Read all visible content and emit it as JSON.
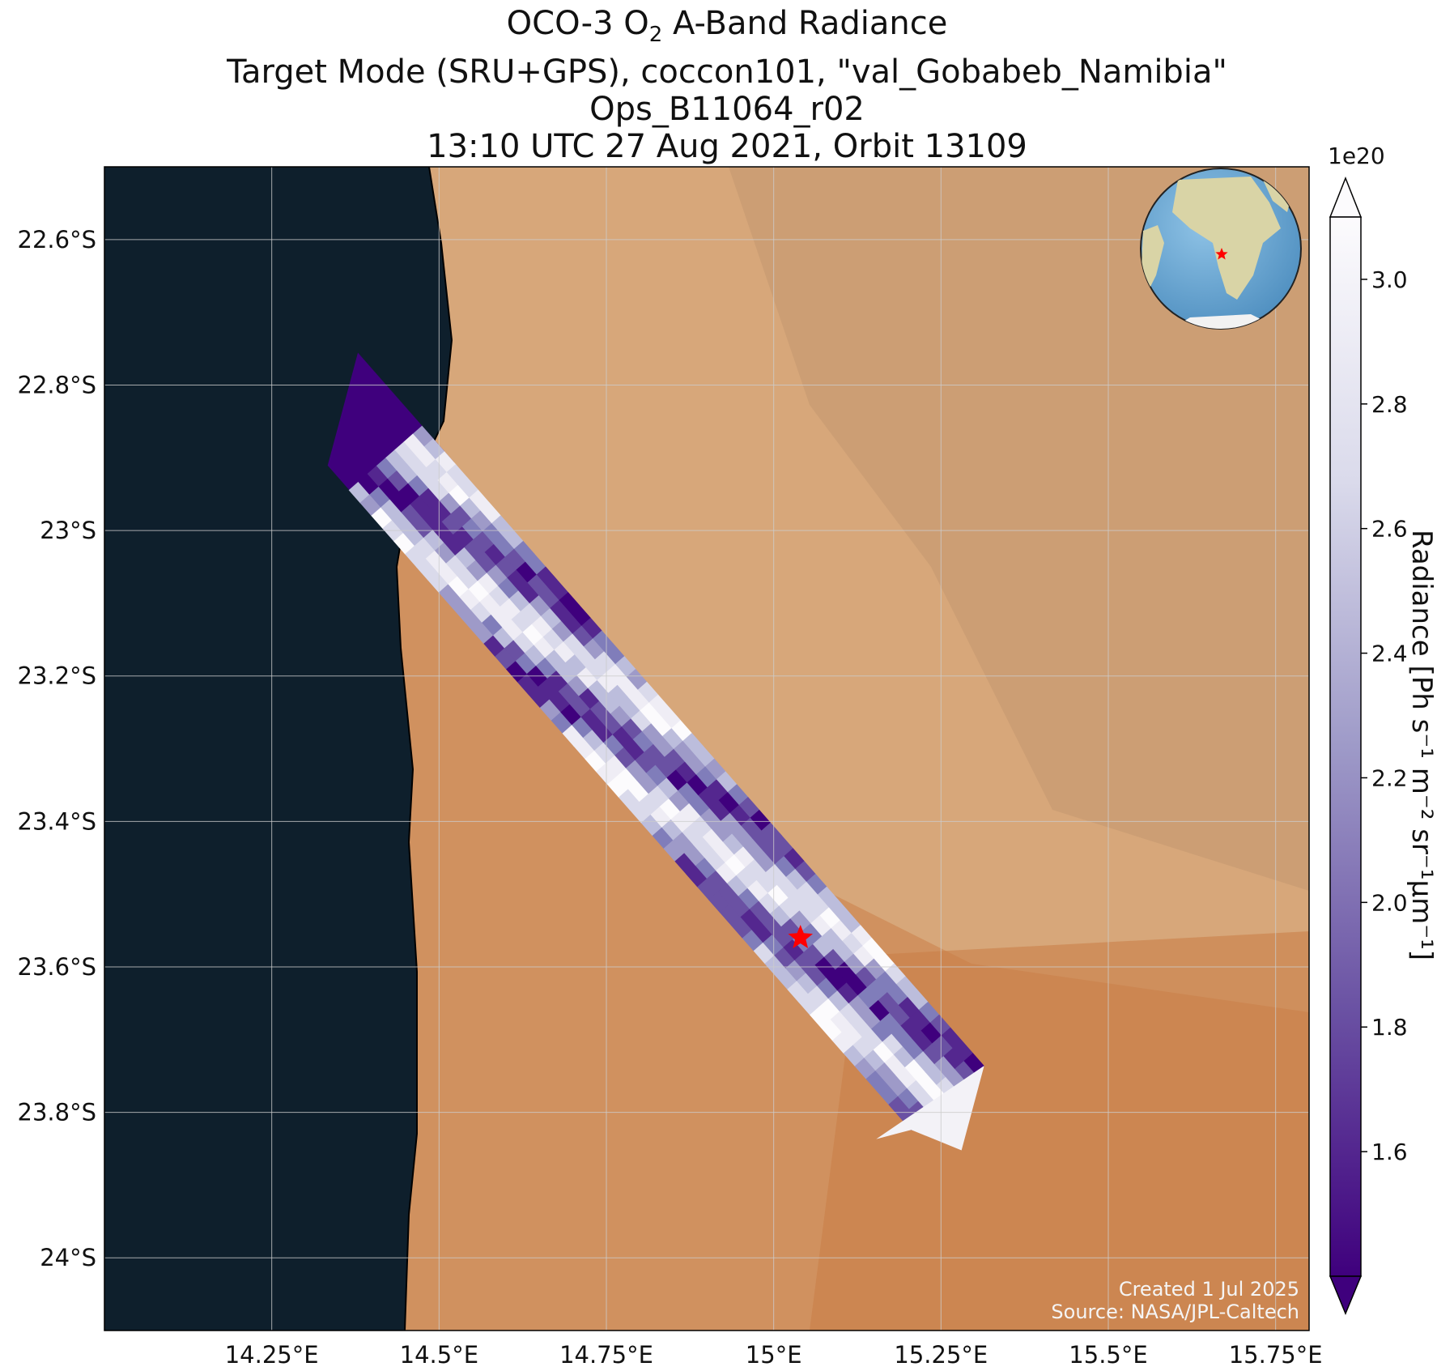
{
  "title": {
    "line1_prefix": "OCO-3 O",
    "line1_sub": "2",
    "line1_suffix": " A-Band Radiance",
    "line2": "Target Mode (SRU+GPS), coccon101, \"val_Gobabeb_Namibia\"",
    "line3": "Ops_B11064_r02",
    "line4": "13:10 UTC 27 Aug 2021, Orbit 13109"
  },
  "map": {
    "lon_range": [
      14.0,
      15.8
    ],
    "lat_range": [
      -24.1,
      -22.5
    ],
    "lon_ticks": [
      {
        "value": 14.25,
        "label": "14.25°E"
      },
      {
        "value": 14.5,
        "label": "14.5°E"
      },
      {
        "value": 14.75,
        "label": "14.75°E"
      },
      {
        "value": 15.0,
        "label": "15°E"
      },
      {
        "value": 15.25,
        "label": "15.25°E"
      },
      {
        "value": 15.5,
        "label": "15.5°E"
      },
      {
        "value": 15.75,
        "label": "15.75°E"
      }
    ],
    "lat_ticks": [
      {
        "value": -22.6,
        "label": "22.6°S"
      },
      {
        "value": -22.8,
        "label": "22.8°S"
      },
      {
        "value": -23.0,
        "label": "23°S"
      },
      {
        "value": -23.2,
        "label": "23.2°S"
      },
      {
        "value": -23.4,
        "label": "23.4°S"
      },
      {
        "value": -23.6,
        "label": "23.6°S"
      },
      {
        "value": -23.8,
        "label": "23.8°S"
      },
      {
        "value": -24.0,
        "label": "24°S"
      }
    ],
    "grid": true,
    "target": {
      "name": "val_Gobabeb_Namibia",
      "lon": 15.04,
      "lat": -23.56,
      "marker": "red-star"
    },
    "colors": {
      "ocean": "#0e1f2c",
      "land": "#d7a77a",
      "dunes": "#cf8d5a",
      "marker": "#ff0000"
    }
  },
  "colorbar": {
    "label": "Radiance [Ph s⁻¹ m⁻² sr⁻¹μm⁻¹]",
    "exponent": "1e20",
    "range": [
      1.4,
      3.1
    ],
    "ticks": [
      {
        "value": 1.6,
        "label": "1.6"
      },
      {
        "value": 1.8,
        "label": "1.8"
      },
      {
        "value": 2.0,
        "label": "2.0"
      },
      {
        "value": 2.2,
        "label": "2.2"
      },
      {
        "value": 2.4,
        "label": "2.4"
      },
      {
        "value": 2.6,
        "label": "2.6"
      },
      {
        "value": 2.8,
        "label": "2.8"
      },
      {
        "value": 3.0,
        "label": "3.0"
      }
    ],
    "colormap": "Purples_r",
    "extend": "both"
  },
  "inset": {
    "description": "globe",
    "marker": "red-star"
  },
  "credit": {
    "created": "Created 1 Jul 2025",
    "source": "Source: NASA/JPL-Caltech"
  }
}
